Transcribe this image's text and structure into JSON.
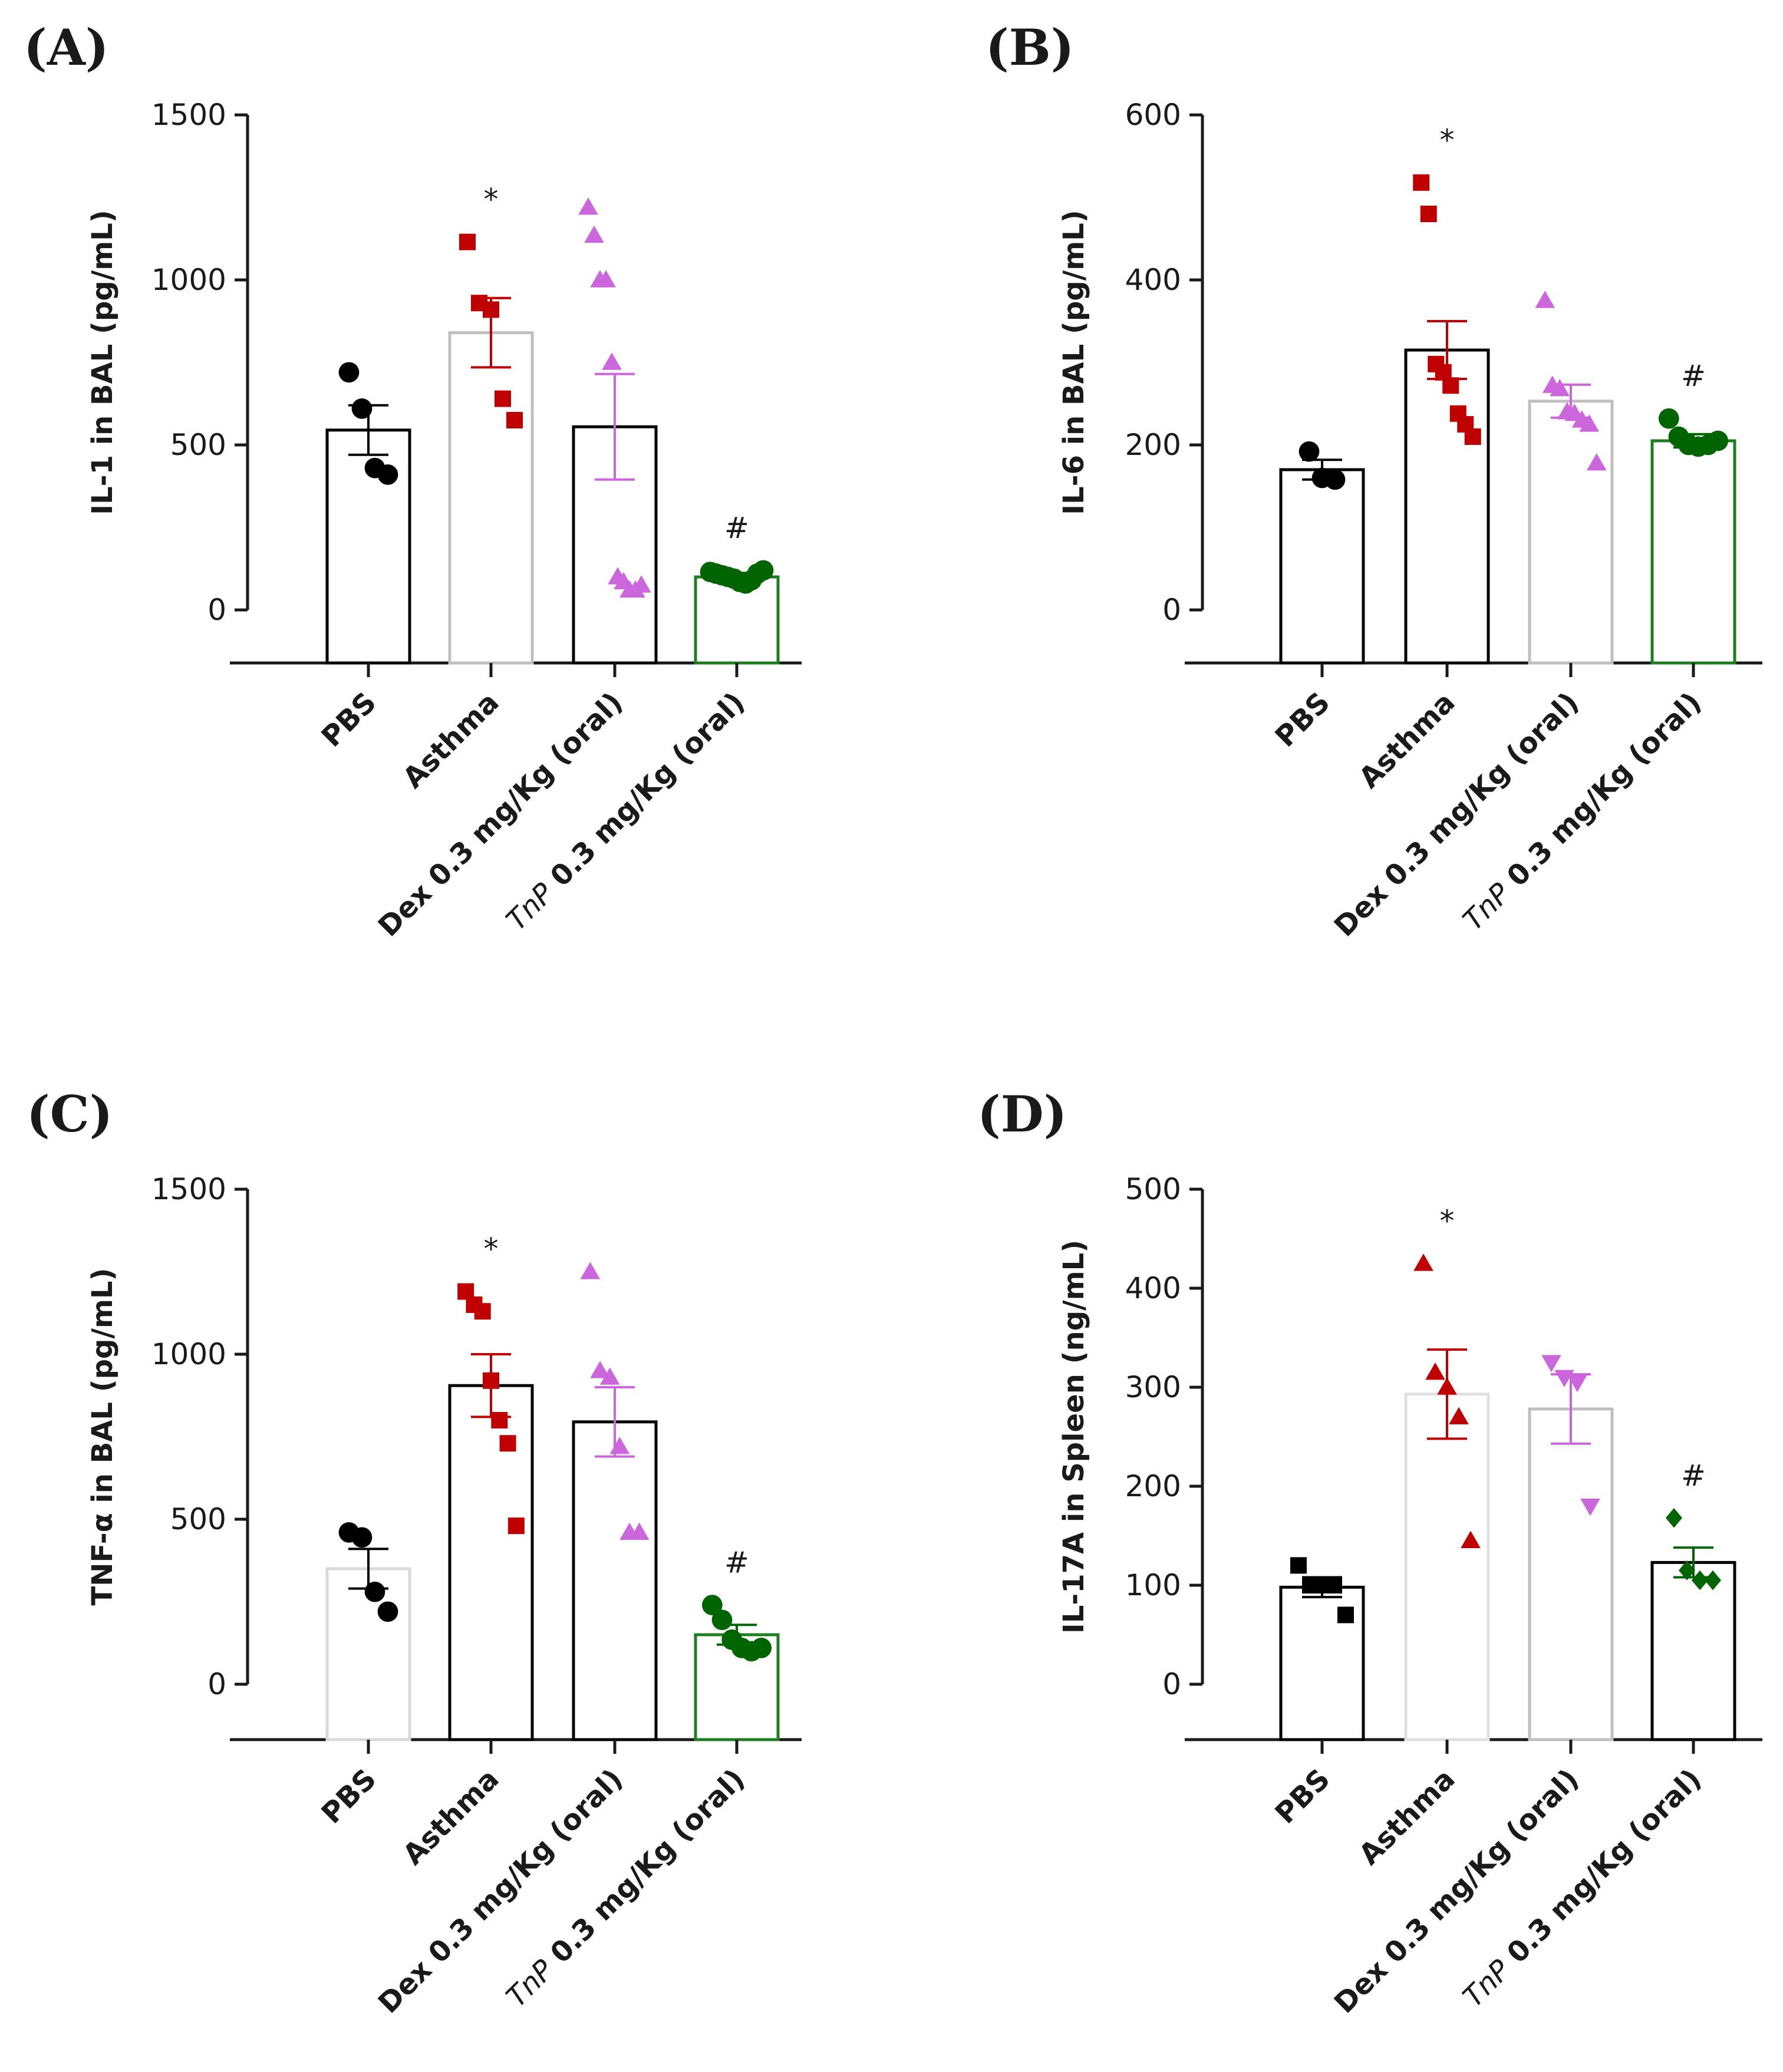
{
  "chart_data": [
    {
      "panel": "(A)",
      "type": "bar",
      "ylabel": "IL-1 in BAL (pg/mL)",
      "ylim": [
        0,
        1500
      ],
      "yticks": [
        0,
        500,
        1000,
        1500
      ],
      "categories": [
        "PBS",
        "Asthma",
        "Dex 0.3 mg/Kg (oral)",
        "TnP 0.3 mg/Kg (oral)"
      ],
      "category_prefix": [
        "",
        "",
        "",
        "TnP"
      ],
      "category_rest": [
        "PBS",
        "Asthma",
        "Dex 0.3 mg/Kg (oral)",
        " 0.3 mg/Kg (oral)"
      ],
      "bars": [
        {
          "mean": 545,
          "sem": 75,
          "points": [
            720,
            610,
            430,
            410
          ],
          "marker": "circle",
          "color": "#000000",
          "edge": "#000000",
          "sig": ""
        },
        {
          "mean": 840,
          "sem": 105,
          "points": [
            1115,
            930,
            910,
            640,
            575
          ],
          "marker": "square",
          "color": "#c00000",
          "edge": "#bfbfbf",
          "sig": "*"
        },
        {
          "mean": 555,
          "sem": 160,
          "points": [
            1220,
            1135,
            1000,
            1000,
            750,
            100,
            85,
            60,
            60,
            75
          ],
          "marker": "triangle",
          "color": "#cc66dd",
          "edge": "#000000",
          "sig": ""
        },
        {
          "mean": 100,
          "sem": 12,
          "points": [
            115,
            110,
            105,
            100,
            95,
            85,
            80,
            90,
            110,
            120
          ],
          "marker": "circle",
          "color": "#006400",
          "edge": "#1e7d1e",
          "sig": "#"
        }
      ]
    },
    {
      "panel": "(B)",
      "type": "bar",
      "ylabel": "IL-6 in BAL (pg/mL)",
      "ylim": [
        0,
        600
      ],
      "yticks": [
        0,
        200,
        400,
        600
      ],
      "categories": [
        "PBS",
        "Asthma",
        "Dex 0.3 mg/Kg (oral)",
        "TnP 0.3 mg/Kg (oral)"
      ],
      "category_prefix": [
        "",
        "",
        "",
        "TnP"
      ],
      "category_rest": [
        "PBS",
        "Asthma",
        "Dex 0.3 mg/Kg (oral)",
        " 0.3 mg/Kg (oral)"
      ],
      "bars": [
        {
          "mean": 170,
          "sem": 12,
          "points": [
            192,
            160,
            158
          ],
          "marker": "circle",
          "color": "#000000",
          "edge": "#000000",
          "sig": ""
        },
        {
          "mean": 315,
          "sem": 35,
          "points": [
            518,
            480,
            298,
            288,
            272,
            238,
            225,
            210
          ],
          "marker": "square",
          "color": "#c00000",
          "edge": "#000000",
          "sig": "*"
        },
        {
          "mean": 253,
          "sem": 20,
          "points": [
            375,
            272,
            268,
            240,
            238,
            230,
            225,
            178
          ],
          "marker": "triangle",
          "color": "#cc66dd",
          "edge": "#bfbfbf",
          "sig": ""
        },
        {
          "mean": 205,
          "sem": 8,
          "points": [
            232,
            210,
            200,
            198,
            200,
            205
          ],
          "marker": "circle",
          "color": "#006400",
          "edge": "#1e7d1e",
          "sig": "#"
        }
      ]
    },
    {
      "panel": "(C)",
      "type": "bar",
      "ylabel": "TNF-α in BAL (pg/mL)",
      "ylim": [
        0,
        1500
      ],
      "yticks": [
        0,
        500,
        1000,
        1500
      ],
      "categories": [
        "PBS",
        "Asthma",
        "Dex 0.3 mg/Kg (oral)",
        "TnP 0.3 mg/Kg (oral)"
      ],
      "category_prefix": [
        "",
        "",
        "",
        "TnP"
      ],
      "category_rest": [
        "PBS",
        "Asthma",
        "Dex 0.3 mg/Kg (oral)",
        " 0.3 mg/Kg (oral)"
      ],
      "bars": [
        {
          "mean": 350,
          "sem": 60,
          "points": [
            460,
            445,
            280,
            220
          ],
          "marker": "circle",
          "color": "#000000",
          "edge": "#d9d9d9",
          "sig": ""
        },
        {
          "mean": 905,
          "sem": 95,
          "points": [
            1190,
            1150,
            1130,
            920,
            800,
            730,
            480
          ],
          "marker": "square",
          "color": "#c00000",
          "edge": "#000000",
          "sig": "*"
        },
        {
          "mean": 795,
          "sem": 105,
          "points": [
            1250,
            950,
            930,
            720,
            460,
            460
          ],
          "marker": "triangle",
          "color": "#cc66dd",
          "edge": "#000000",
          "sig": ""
        },
        {
          "mean": 150,
          "sem": 30,
          "points": [
            240,
            195,
            135,
            110,
            100,
            110
          ],
          "marker": "circle",
          "color": "#006400",
          "edge": "#1e7d1e",
          "sig": "#"
        }
      ]
    },
    {
      "panel": "(D)",
      "type": "bar",
      "ylabel": "IL-17A in Spleen (ng/mL)",
      "ylim": [
        0,
        500
      ],
      "yticks": [
        0,
        100,
        200,
        300,
        400,
        500
      ],
      "categories": [
        "PBS",
        "Asthma",
        "Dex 0.3 mg/Kg (oral)",
        "TnP 0.3 mg/Kg (oral)"
      ],
      "category_prefix": [
        "",
        "",
        "",
        "TnP"
      ],
      "category_rest": [
        "PBS",
        "Asthma",
        "Dex 0.3 mg/Kg (oral)",
        " 0.3 mg/Kg (oral)"
      ],
      "bars": [
        {
          "mean": 98,
          "sem": 10,
          "points": [
            120,
            100,
            100,
            100,
            70
          ],
          "marker": "square",
          "color": "#000000",
          "edge": "#000000",
          "sig": ""
        },
        {
          "mean": 293,
          "sem": 45,
          "points": [
            425,
            315,
            300,
            270,
            145
          ],
          "marker": "triangle",
          "color": "#c00000",
          "edge": "#e0e0e0",
          "sig": "*"
        },
        {
          "mean": 278,
          "sem": 35,
          "points": [
            325,
            310,
            305,
            180
          ],
          "marker": "triangle-down",
          "color": "#cc66dd",
          "edge": "#bfbfbf",
          "sig": ""
        },
        {
          "mean": 123,
          "sem": 15,
          "points": [
            168,
            115,
            105,
            105
          ],
          "marker": "diamond",
          "color": "#006400",
          "edge": "#000000",
          "sig": "#"
        }
      ]
    }
  ]
}
